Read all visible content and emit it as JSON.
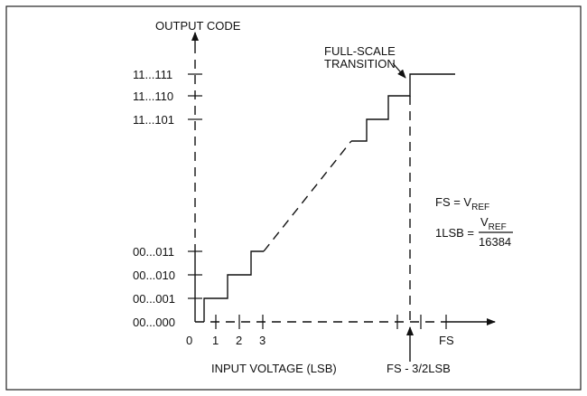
{
  "chart_data": {
    "type": "line",
    "title": "",
    "ylabel": "OUTPUT CODE",
    "xlabel": "INPUT VOLTAGE (LSB)",
    "y_ticks": [
      "00...000",
      "00...001",
      "00...010",
      "00...011",
      "11...101",
      "11...110",
      "11...111"
    ],
    "x_ticks": [
      "0",
      "1",
      "2",
      "3",
      "FS"
    ],
    "series": [
      {
        "style": "solid staircase",
        "x": [
          0.5,
          1.5,
          2.5,
          3.5
        ],
        "y": [
          "00...001",
          "00...010",
          "00...011",
          "00...011"
        ]
      },
      {
        "style": "solid staircase",
        "x": [
          "FS - 9/2LSB",
          "FS - 7/2LSB",
          "FS - 5/2LSB",
          "FS - 3/2LSB",
          "FS + 2LSB"
        ],
        "y": [
          "11...101",
          "11...101",
          "11...110",
          "11...111",
          "11...111"
        ]
      }
    ],
    "annotations": {
      "full_scale_transition": "FULL-SCALE\nTRANSITION",
      "fs_marker": "FS - 3/2LSB",
      "eq1_lhs": "FS = V",
      "eq1_sub": "REF",
      "eq2_lhs": "1LSB = ",
      "eq2_num": "V",
      "eq2_num_sub": "REF",
      "eq2_den": "16384"
    }
  }
}
